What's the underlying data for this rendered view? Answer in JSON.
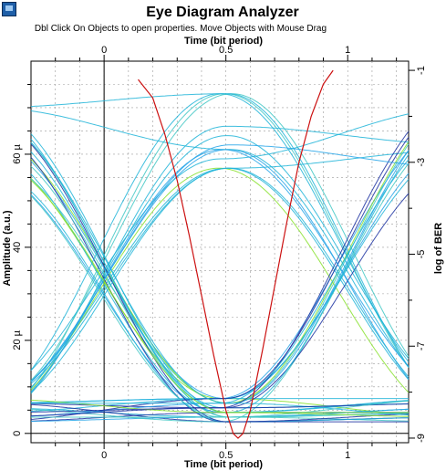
{
  "app": {
    "icon": "eye-diagram-app-icon"
  },
  "header": {
    "title": "Eye Diagram Analyzer",
    "hint": "Dbl Click On Objects to open properties.  Move Objects with Mouse Drag"
  },
  "colors": {
    "ber_curve": "#cc1010",
    "trace_blue": "#1a2fa0",
    "trace_cyan": "#1eb4d8",
    "trace_green": "#86e02a",
    "grid": "#9a9a9a"
  },
  "chart_data": {
    "type": "line",
    "title": "Eye Diagram Analyzer",
    "x_axis_bottom": {
      "label": "Time (bit period)",
      "ticks": [
        "0",
        "0.5",
        "1"
      ],
      "range": [
        -0.3,
        1.25
      ]
    },
    "x_axis_top": {
      "label": "Time (bit period)",
      "ticks": [
        "0",
        "0.5",
        "1"
      ],
      "range": [
        -0.3,
        1.25
      ]
    },
    "y_axis_left": {
      "label": "Amplitude (a.u.)",
      "ticks": [
        "0",
        "20 µ",
        "40",
        "60 µ"
      ],
      "range": [
        -2,
        80
      ],
      "unit": "µ (×1e-6)"
    },
    "y_axis_right": {
      "label": "log of BER",
      "ticks": [
        "-1",
        "-3",
        "-5",
        "-7",
        "-9"
      ],
      "range": [
        -9.1,
        -0.8
      ]
    },
    "grid": true,
    "eye_traces": {
      "levels_low": [
        2.5,
        3.5,
        4.5,
        5.5,
        6.5,
        7.5
      ],
      "levels_high": [
        57,
        59,
        61,
        62,
        64,
        66,
        68,
        70,
        72,
        73
      ],
      "colors": [
        "blue",
        "cyan",
        "green"
      ]
    },
    "series": [
      {
        "name": "",
        "axis": "right",
        "x": [
          0.14,
          0.2,
          0.25,
          0.3,
          0.35,
          0.4,
          0.45,
          0.5,
          0.53,
          0.55,
          0.57,
          0.6,
          0.65,
          0.7,
          0.75,
          0.8,
          0.85,
          0.9,
          0.94
        ],
        "y": [
          -1.2,
          -1.6,
          -2.4,
          -3.4,
          -4.6,
          -5.9,
          -7.2,
          -8.4,
          -8.9,
          -9.0,
          -8.9,
          -8.4,
          -7.1,
          -5.7,
          -4.3,
          -3.0,
          -2.0,
          -1.3,
          -1.0
        ]
      }
    ]
  }
}
